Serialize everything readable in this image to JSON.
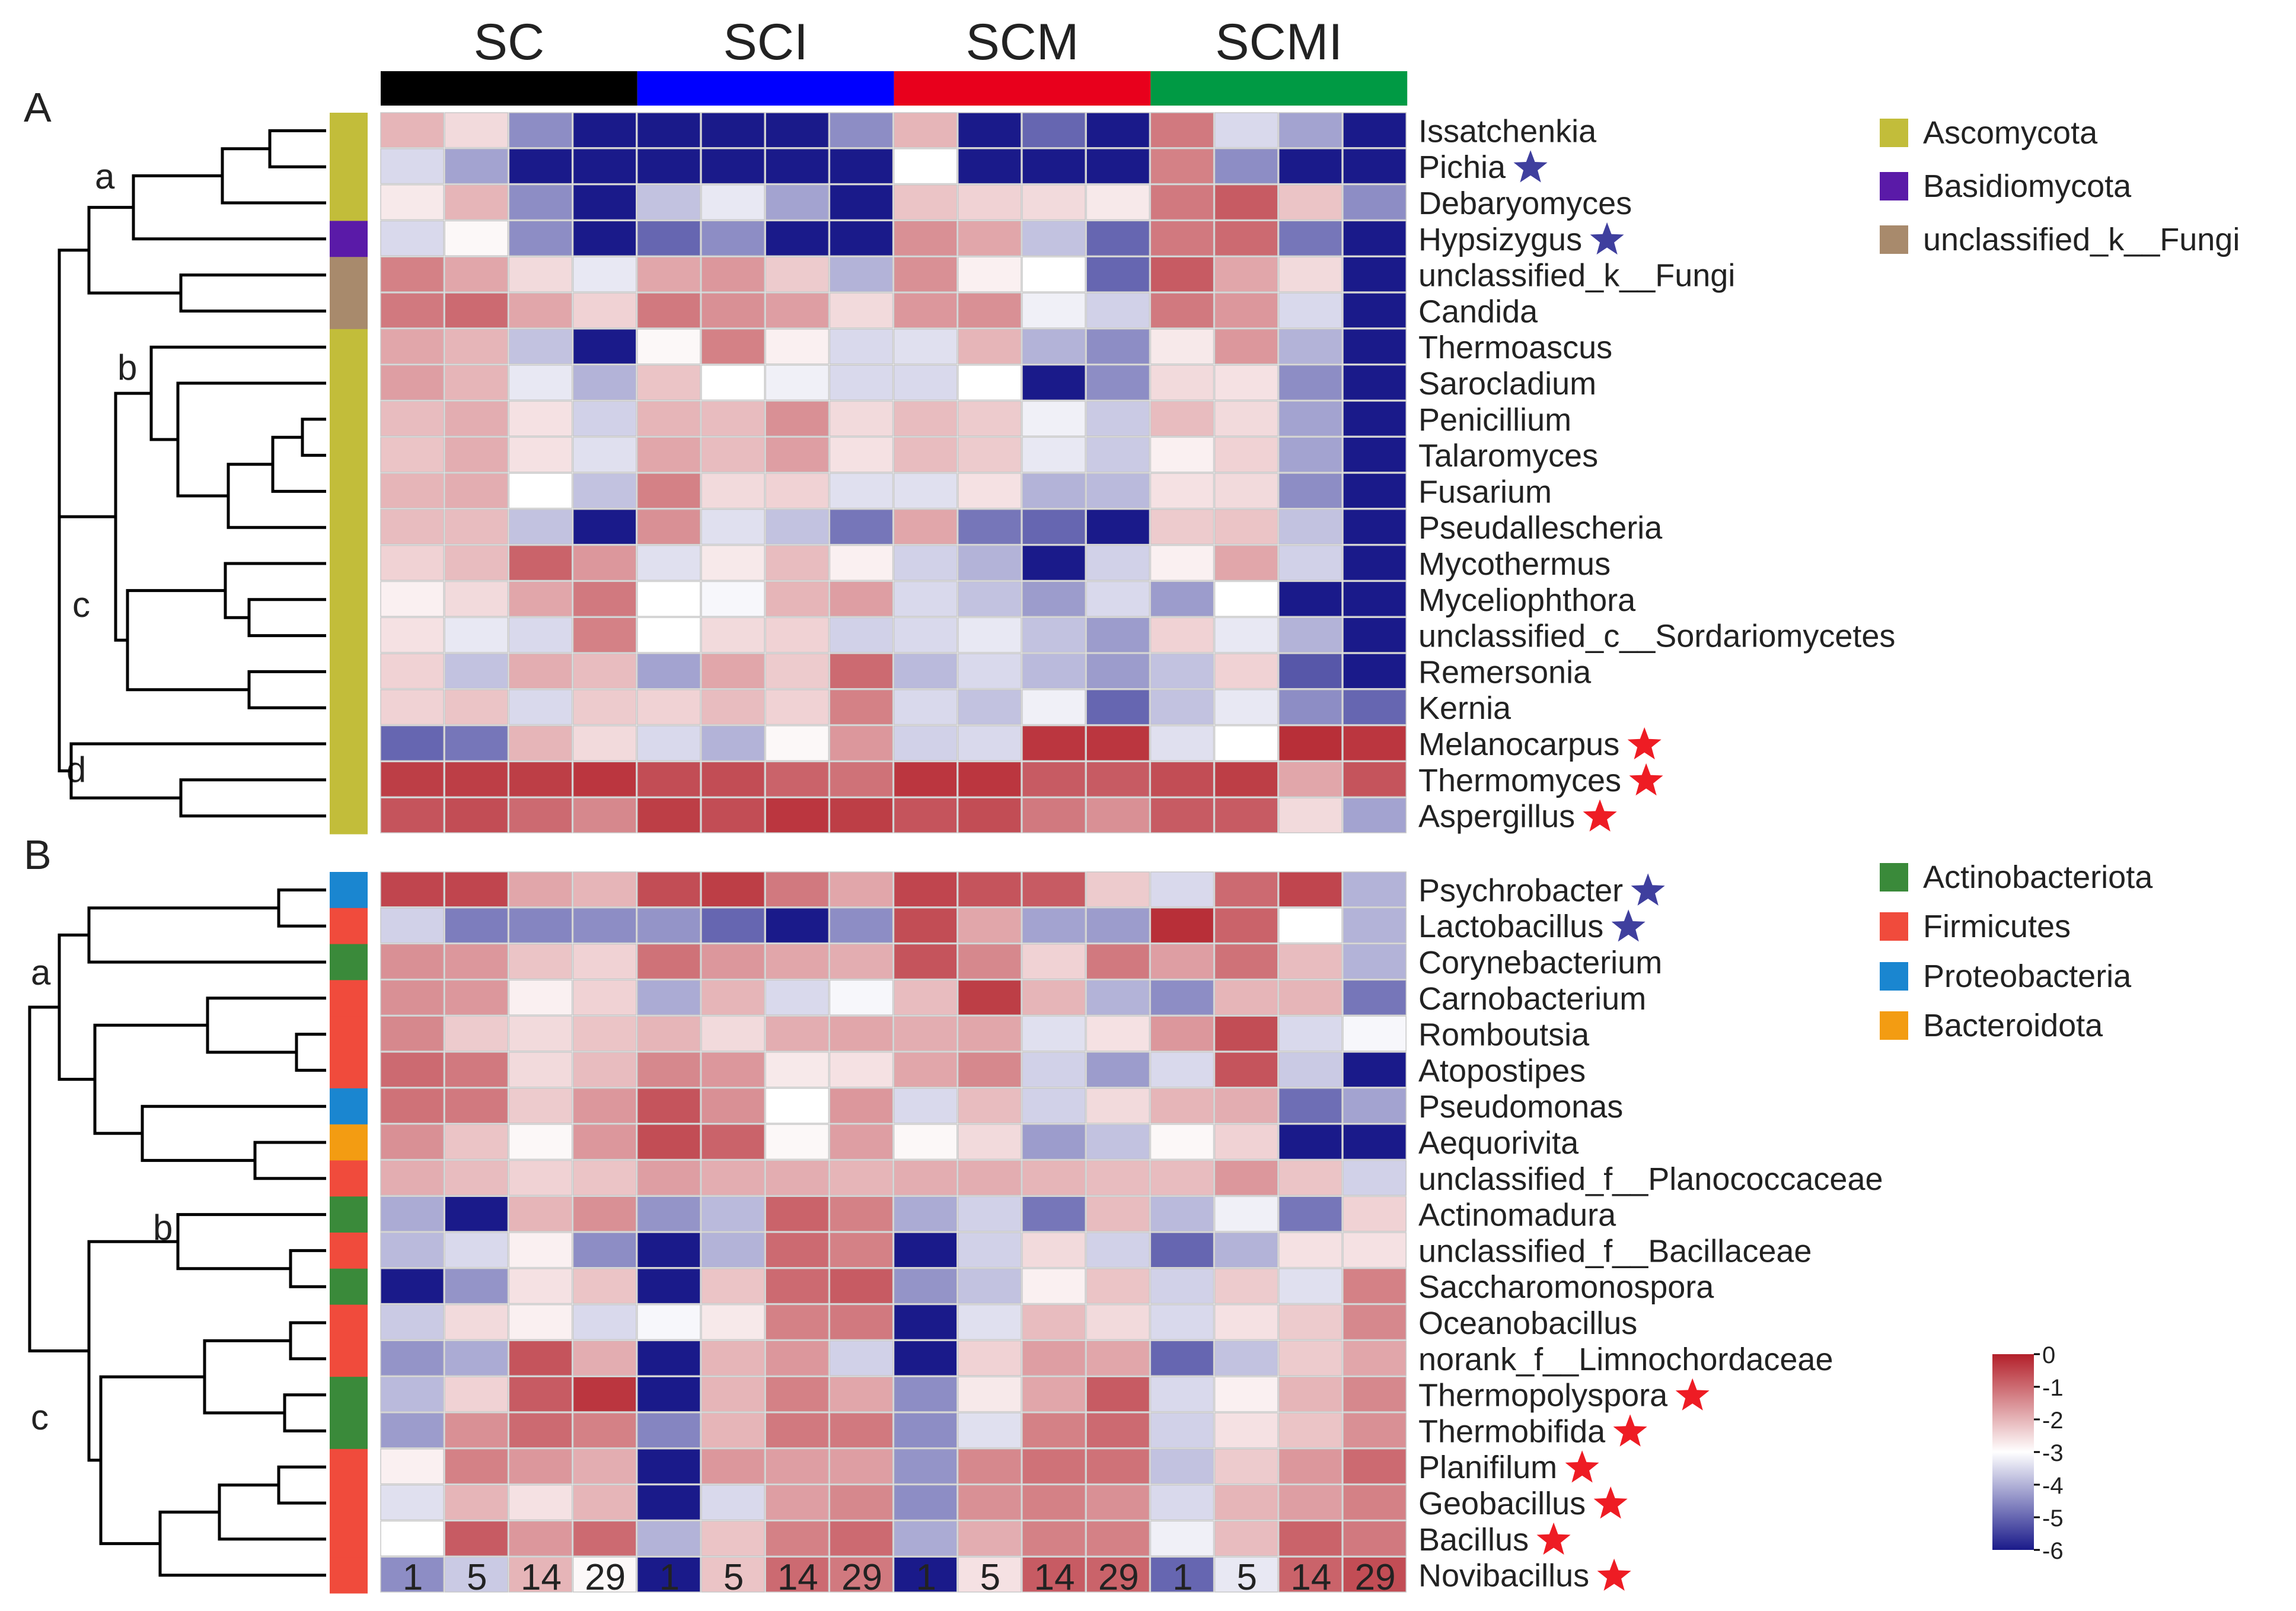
{
  "chart_data": {
    "type": "heatmap",
    "groups": [
      "SC",
      "SCI",
      "SCM",
      "SCMI"
    ],
    "group_colors": [
      "#000000",
      "#0000ff",
      "#e8001c",
      "#009a44"
    ],
    "columns": [
      "1",
      "5",
      "14",
      "29",
      "1",
      "5",
      "14",
      "29",
      "1",
      "5",
      "14",
      "29",
      "1",
      "5",
      "14",
      "29"
    ],
    "scale": {
      "min": -6,
      "max": 0,
      "ticks": [
        "0",
        "-1",
        "-2",
        "-3",
        "-4",
        "-5",
        "-6"
      ],
      "low_color": "#1a1a8a",
      "mid_color": "#ffffff",
      "high_color": "#b3202a"
    },
    "panels": [
      {
        "label": "A",
        "clusters": [
          "a",
          "b",
          "c",
          "d"
        ],
        "rows": [
          "Issatchenkia",
          "Pichia",
          "Debaryomyces",
          "Hypsizygus",
          "unclassified_k__Fungi",
          "Candida",
          "Thermoascus",
          "Sarocladium",
          "Penicillium",
          "Talaromyces",
          "Fusarium",
          "Pseudallescheria",
          "Mycothermus",
          "Myceliophthora",
          "unclassified_c__Sordariomycetes",
          "Remersonia",
          "Kernia",
          "Melanocarpus",
          "Thermomyces",
          "Aspergillus"
        ],
        "stars": [
          "none",
          "blue",
          "none",
          "blue",
          "none",
          "none",
          "none",
          "none",
          "none",
          "none",
          "none",
          "none",
          "none",
          "none",
          "none",
          "none",
          "none",
          "red",
          "red",
          "red"
        ],
        "phylum": [
          0,
          0,
          0,
          1,
          2,
          2,
          0,
          0,
          0,
          0,
          0,
          0,
          0,
          0,
          0,
          0,
          0,
          0,
          0,
          0
        ],
        "legend": [
          {
            "name": "Ascomycota",
            "color": "#c2bd3a"
          },
          {
            "name": "Basidiomycota",
            "color": "#5a1aa8"
          },
          {
            "name": "unclassified_k__Fungi",
            "color": "#a88a6c"
          }
        ],
        "values": [
          [
            -2.0,
            -2.5,
            -4.5,
            -6.0,
            -6.0,
            -6.0,
            -6.0,
            -4.5,
            -2.0,
            -6.0,
            -5.0,
            -6.0,
            -1.2,
            -3.5,
            -4.2,
            -6.0
          ],
          [
            -3.5,
            -4.2,
            -6.0,
            -6.0,
            -6.0,
            -6.0,
            -6.0,
            -6.0,
            -3.0,
            -6.0,
            -6.0,
            -6.0,
            -1.3,
            -4.5,
            -6.0,
            -6.0
          ],
          [
            -2.7,
            -2.0,
            -4.5,
            -6.0,
            -3.8,
            -3.3,
            -4.2,
            -6.0,
            -2.2,
            -2.4,
            -2.5,
            -2.7,
            -1.2,
            -0.8,
            -2.2,
            -4.5
          ],
          [
            -3.5,
            -2.9,
            -4.5,
            -6.0,
            -5.0,
            -4.5,
            -6.0,
            -6.0,
            -1.5,
            -1.8,
            -3.8,
            -5.0,
            -1.2,
            -1.0,
            -4.8,
            -6.0
          ],
          [
            -1.3,
            -1.8,
            -2.5,
            -3.3,
            -1.8,
            -1.6,
            -2.3,
            -4.0,
            -1.5,
            -2.8,
            -3.0,
            -5.0,
            -0.8,
            -1.8,
            -2.5,
            -6.0
          ],
          [
            -1.2,
            -1.0,
            -1.8,
            -2.4,
            -1.2,
            -1.5,
            -1.7,
            -2.5,
            -1.6,
            -1.5,
            -3.2,
            -3.6,
            -1.2,
            -1.6,
            -3.5,
            -6.0
          ],
          [
            -1.8,
            -2.0,
            -3.8,
            -6.0,
            -2.9,
            -1.3,
            -2.8,
            -3.5,
            -3.4,
            -2.0,
            -4.0,
            -4.5,
            -2.7,
            -1.6,
            -4.0,
            -6.0
          ],
          [
            -1.7,
            -2.0,
            -3.3,
            -4.0,
            -2.2,
            -3.0,
            -3.2,
            -3.5,
            -3.5,
            -3.0,
            -6.0,
            -4.5,
            -2.5,
            -2.6,
            -4.5,
            -6.0
          ],
          [
            -2.1,
            -1.9,
            -2.6,
            -3.6,
            -2.0,
            -2.1,
            -1.5,
            -2.5,
            -2.1,
            -2.3,
            -3.2,
            -3.7,
            -2.1,
            -2.5,
            -4.2,
            -6.0
          ],
          [
            -2.2,
            -1.9,
            -2.6,
            -3.4,
            -1.8,
            -2.1,
            -1.7,
            -2.6,
            -2.1,
            -2.3,
            -3.3,
            -3.7,
            -2.8,
            -2.4,
            -4.2,
            -6.0
          ],
          [
            -2.0,
            -1.9,
            -3.0,
            -3.8,
            -1.3,
            -2.5,
            -2.4,
            -3.4,
            -3.4,
            -2.6,
            -4.0,
            -3.9,
            -2.6,
            -2.5,
            -4.5,
            -6.0
          ],
          [
            -2.1,
            -2.1,
            -3.8,
            -6.0,
            -1.5,
            -3.4,
            -3.8,
            -4.8,
            -1.8,
            -4.8,
            -5.0,
            -6.0,
            -2.3,
            -2.2,
            -3.8,
            -6.0
          ],
          [
            -2.4,
            -2.1,
            -0.9,
            -1.6,
            -3.4,
            -2.7,
            -2.1,
            -2.8,
            -3.6,
            -4.0,
            -6.0,
            -3.6,
            -2.8,
            -1.8,
            -3.6,
            -6.0
          ],
          [
            -2.8,
            -2.5,
            -1.8,
            -1.2,
            -3.0,
            -3.1,
            -2.0,
            -1.7,
            -3.5,
            -3.8,
            -4.3,
            -3.5,
            -4.3,
            -3.0,
            -6.0,
            -6.0
          ],
          [
            -2.6,
            -3.3,
            -3.5,
            -1.3,
            -3.0,
            -2.5,
            -2.4,
            -3.6,
            -3.5,
            -3.3,
            -3.8,
            -4.3,
            -2.4,
            -3.3,
            -4.0,
            -6.0
          ],
          [
            -2.4,
            -3.8,
            -1.9,
            -2.1,
            -4.2,
            -1.8,
            -2.3,
            -1.0,
            -3.9,
            -3.5,
            -3.9,
            -4.3,
            -3.8,
            -2.4,
            -5.2,
            -6.0
          ],
          [
            -2.4,
            -2.2,
            -3.5,
            -2.3,
            -2.4,
            -2.1,
            -2.4,
            -1.3,
            -3.5,
            -3.8,
            -3.2,
            -5.0,
            -3.8,
            -3.3,
            -4.5,
            -5.0
          ],
          [
            -5.0,
            -4.8,
            -2.0,
            -2.5,
            -3.5,
            -4.0,
            -2.9,
            -1.6,
            -3.6,
            -3.5,
            -0.3,
            -0.3,
            -3.4,
            -3.0,
            -0.2,
            -0.3
          ],
          [
            -0.4,
            -0.4,
            -0.4,
            -0.3,
            -0.6,
            -0.6,
            -0.9,
            -1.1,
            -0.3,
            -0.3,
            -0.8,
            -0.8,
            -0.6,
            -0.4,
            -1.8,
            -0.7
          ],
          [
            -0.7,
            -0.6,
            -1.0,
            -1.4,
            -0.4,
            -0.6,
            -0.3,
            -0.4,
            -0.7,
            -0.6,
            -1.2,
            -1.5,
            -0.8,
            -0.8,
            -2.5,
            -4.2
          ]
        ]
      },
      {
        "label": "B",
        "clusters": [
          "a",
          "b",
          "c"
        ],
        "rows": [
          "Psychrobacter",
          "Lactobacillus",
          "Corynebacterium",
          "Carnobacterium",
          "Romboutsia",
          "Atopostipes",
          "Pseudomonas",
          "Aequorivita",
          "unclassified_f__Planococcaceae",
          "Actinomadura",
          "unclassified_f__Bacillaceae",
          "Saccharomonospora",
          "Oceanobacillus",
          "norank_f__Limnochordaceae",
          "Thermopolyspora",
          "Thermobifida",
          "Planifilum",
          "Geobacillus",
          "Bacillus",
          "Novibacillus"
        ],
        "stars": [
          "blue",
          "blue",
          "none",
          "none",
          "none",
          "none",
          "none",
          "none",
          "none",
          "none",
          "none",
          "none",
          "none",
          "none",
          "red",
          "red",
          "red",
          "red",
          "red",
          "red"
        ],
        "phylum": [
          2,
          1,
          0,
          1,
          1,
          1,
          2,
          3,
          1,
          0,
          1,
          0,
          1,
          1,
          0,
          0,
          1,
          1,
          1,
          1
        ],
        "legend": [
          {
            "name": "Actinobacteriota",
            "color": "#3a8a3a"
          },
          {
            "name": "Firmicutes",
            "color": "#f04b3c"
          },
          {
            "name": "Proteobacteria",
            "color": "#1a86d0"
          },
          {
            "name": "Bacteroidota",
            "color": "#f39c12"
          }
        ],
        "values": [
          [
            -0.5,
            -0.5,
            -1.8,
            -2.0,
            -0.6,
            -0.4,
            -1.2,
            -1.8,
            -0.5,
            -0.7,
            -0.8,
            -2.3,
            -3.5,
            -1.0,
            -0.5,
            -4.0
          ],
          [
            -3.6,
            -4.7,
            -4.6,
            -4.5,
            -4.4,
            -5.0,
            -6.0,
            -4.5,
            -0.6,
            -1.8,
            -4.2,
            -4.3,
            -0.2,
            -0.9,
            -3.0,
            -4.0
          ],
          [
            -1.5,
            -1.6,
            -2.2,
            -2.4,
            -1.1,
            -1.6,
            -1.8,
            -1.9,
            -0.7,
            -1.4,
            -2.4,
            -1.2,
            -1.7,
            -1.1,
            -2.1,
            -4.0
          ],
          [
            -1.5,
            -1.6,
            -2.8,
            -2.4,
            -4.1,
            -2.0,
            -3.5,
            -3.1,
            -2.1,
            -0.4,
            -2.0,
            -4.0,
            -4.5,
            -2.0,
            -2.0,
            -4.8
          ],
          [
            -1.4,
            -2.3,
            -2.5,
            -2.2,
            -2.0,
            -2.5,
            -1.9,
            -1.8,
            -1.9,
            -1.8,
            -3.4,
            -2.6,
            -1.6,
            -0.6,
            -3.5,
            -3.1
          ],
          [
            -1.0,
            -1.2,
            -2.5,
            -2.1,
            -1.4,
            -1.6,
            -2.7,
            -2.6,
            -1.8,
            -1.4,
            -3.6,
            -4.3,
            -3.5,
            -0.7,
            -3.7,
            -6.0
          ],
          [
            -1.1,
            -1.2,
            -2.3,
            -1.6,
            -0.7,
            -1.5,
            -3.0,
            -1.6,
            -3.5,
            -2.1,
            -3.6,
            -2.5,
            -2.0,
            -1.9,
            -4.9,
            -4.2
          ],
          [
            -1.5,
            -2.2,
            -2.9,
            -1.6,
            -0.6,
            -0.9,
            -2.9,
            -1.7,
            -2.9,
            -2.5,
            -4.3,
            -3.8,
            -2.9,
            -2.4,
            -6.0,
            -6.0
          ],
          [
            -1.9,
            -2.1,
            -2.4,
            -2.2,
            -1.7,
            -1.9,
            -1.9,
            -2.0,
            -1.9,
            -1.9,
            -2.0,
            -2.1,
            -2.1,
            -1.6,
            -2.2,
            -3.6
          ],
          [
            -4.1,
            -6.0,
            -2.0,
            -1.5,
            -4.4,
            -3.9,
            -0.9,
            -1.3,
            -4.1,
            -3.6,
            -4.8,
            -2.1,
            -3.9,
            -3.2,
            -4.8,
            -2.4
          ],
          [
            -3.9,
            -3.5,
            -2.8,
            -4.5,
            -6.0,
            -4.0,
            -1.0,
            -1.3,
            -6.0,
            -3.6,
            -2.5,
            -3.6,
            -5.0,
            -4.0,
            -2.6,
            -2.6
          ],
          [
            -6.0,
            -4.4,
            -2.6,
            -2.2,
            -6.0,
            -2.2,
            -1.0,
            -0.8,
            -4.4,
            -3.8,
            -2.8,
            -2.2,
            -3.6,
            -2.3,
            -3.4,
            -1.3
          ],
          [
            -3.7,
            -2.5,
            -2.8,
            -3.5,
            -3.1,
            -2.7,
            -1.3,
            -1.2,
            -6.0,
            -3.4,
            -2.1,
            -2.5,
            -3.5,
            -2.6,
            -2.3,
            -1.4
          ],
          [
            -4.4,
            -4.1,
            -0.7,
            -1.9,
            -6.0,
            -2.0,
            -1.6,
            -3.6,
            -6.0,
            -2.4,
            -1.7,
            -1.8,
            -5.0,
            -3.8,
            -2.3,
            -1.8
          ],
          [
            -3.9,
            -2.4,
            -0.8,
            -0.3,
            -6.0,
            -2.0,
            -1.3,
            -1.8,
            -4.5,
            -2.7,
            -1.8,
            -0.8,
            -3.5,
            -2.8,
            -2.0,
            -1.4
          ],
          [
            -4.3,
            -1.5,
            -1.0,
            -1.3,
            -4.6,
            -2.0,
            -1.2,
            -1.2,
            -4.5,
            -3.4,
            -1.3,
            -1.0,
            -3.6,
            -2.6,
            -2.2,
            -1.5
          ],
          [
            -2.8,
            -1.3,
            -1.6,
            -1.9,
            -6.0,
            -1.6,
            -1.7,
            -1.7,
            -4.4,
            -1.4,
            -1.1,
            -1.1,
            -3.8,
            -2.3,
            -1.6,
            -1.0
          ],
          [
            -3.4,
            -2.0,
            -2.6,
            -2.0,
            -6.0,
            -3.5,
            -1.7,
            -1.4,
            -4.5,
            -1.5,
            -1.3,
            -1.5,
            -3.5,
            -2.0,
            -1.7,
            -1.3
          ],
          [
            -3.0,
            -0.8,
            -1.6,
            -1.0,
            -4.0,
            -2.2,
            -1.3,
            -1.0,
            -4.1,
            -1.9,
            -1.3,
            -1.3,
            -3.2,
            -2.1,
            -0.9,
            -1.2
          ],
          [
            -4.5,
            -3.7,
            -2.0,
            -2.9,
            -6.0,
            -2.2,
            -1.0,
            -1.2,
            -6.0,
            -2.6,
            -0.8,
            -0.9,
            -5.0,
            -3.3,
            -0.9,
            -0.6
          ]
        ]
      }
    ]
  }
}
